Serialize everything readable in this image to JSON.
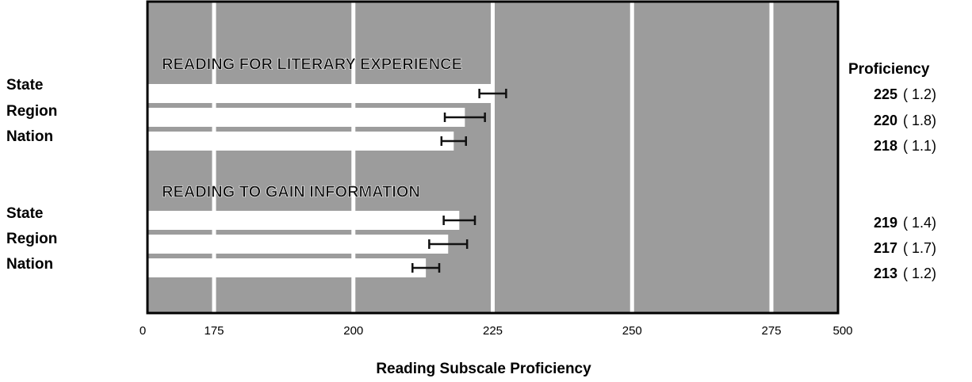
{
  "chart_data": {
    "type": "bar",
    "orientation": "horizontal",
    "x_label": "Reading Subscale Proficiency",
    "value_column_title": "Proficiency",
    "xlim": [
      0,
      500
    ],
    "axis_break": true,
    "xticks": [
      0,
      175,
      200,
      225,
      250,
      275,
      500
    ],
    "grid": true,
    "bar_color": "#ffffff",
    "background_color": "#9c9c9c",
    "groups": [
      {
        "title": "READING FOR LITERARY EXPERIENCE",
        "categories": [
          "State",
          "Region",
          "Nation"
        ],
        "values": [
          225,
          220,
          218
        ],
        "errors": [
          1.2,
          1.8,
          1.1
        ],
        "error_labels": [
          "( 1.2)",
          "( 1.8)",
          "( 1.1)"
        ]
      },
      {
        "title": "READING TO GAIN INFORMATION",
        "categories": [
          "State",
          "Region",
          "Nation"
        ],
        "values": [
          219,
          217,
          213
        ],
        "errors": [
          1.4,
          1.7,
          1.2
        ],
        "error_labels": [
          "( 1.4)",
          "( 1.7)",
          "( 1.2)"
        ]
      }
    ]
  }
}
